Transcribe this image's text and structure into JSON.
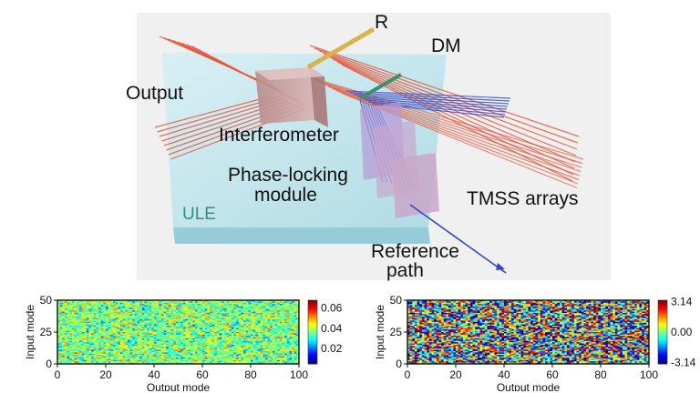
{
  "diagram": {
    "labels": {
      "r": "R",
      "dm": "DM",
      "output": "Output",
      "interferometer": "Interferometer",
      "phase_locking_line1": "Phase-locking",
      "phase_locking_line2": "module",
      "tmss": "TMSS arrays",
      "ule": "ULE",
      "reference_line1": "Reference",
      "reference_line2": "path"
    },
    "colors": {
      "red_beam": "#e8553a",
      "blue_beam": "#3146c8",
      "ule_block": "#bfe6ee",
      "mirror_r": "#d9b24a",
      "mirror_dm": "#3d8f6a",
      "module": "#c9a7c9"
    }
  },
  "heatmaps": [
    {
      "ylabel": "Input mode",
      "xlabel": "Output mode",
      "yticks": [
        "0",
        "25",
        "50"
      ],
      "xticks": [
        "0",
        "20",
        "40",
        "60",
        "80",
        "100"
      ],
      "colorbar_ticks": [
        "0.06",
        "0.04",
        "0.02"
      ],
      "chart_data": {
        "type": "heatmap",
        "x_range": [
          0,
          100
        ],
        "y_range": [
          0,
          50
        ],
        "value_range": [
          0.01,
          0.07
        ],
        "colormap": "jet",
        "pattern": "random"
      }
    },
    {
      "ylabel": "Input mode",
      "xlabel": "Output mode",
      "yticks": [
        "0",
        "25",
        "50"
      ],
      "xticks": [
        "0",
        "20",
        "40",
        "60",
        "80",
        "100"
      ],
      "colorbar_ticks": [
        "3.14",
        "0.00",
        "-3.14"
      ],
      "chart_data": {
        "type": "heatmap",
        "x_range": [
          0,
          100
        ],
        "y_range": [
          0,
          50
        ],
        "value_range": [
          -3.14,
          3.14
        ],
        "colormap": "jet",
        "pattern": "random"
      }
    }
  ]
}
